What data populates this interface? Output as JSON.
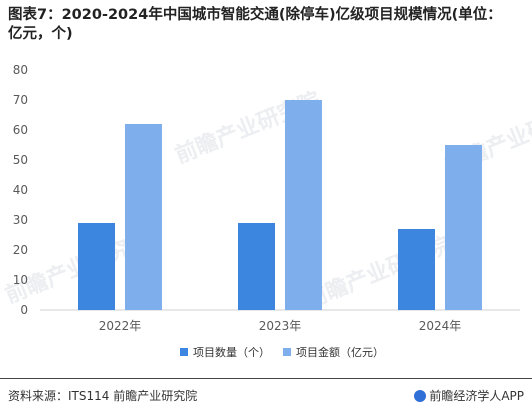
{
  "title": "图表7：2020-2024年中国城市智能交通(除停车)亿级项目规模情况(单位：亿元，个)",
  "source": "资料来源：ITS114 前瞻产业研究院",
  "brand": "前瞻经济学人APP",
  "watermark": "前瞻产业研究院",
  "colors": {
    "series1": "#3d86e0",
    "series2": "#7eaeec"
  },
  "chart_data": {
    "type": "bar",
    "categories": [
      "2022年",
      "2023年",
      "2024年"
    ],
    "series": [
      {
        "name": "项目数量（个）",
        "values": [
          29,
          29,
          27
        ]
      },
      {
        "name": "项目金额（亿元）",
        "values": [
          62,
          70,
          55
        ]
      }
    ],
    "ylim": [
      0,
      80
    ],
    "yticks": [
      0,
      10,
      20,
      30,
      40,
      50,
      60,
      70,
      80
    ],
    "grid": false,
    "legend_position": "bottom"
  }
}
